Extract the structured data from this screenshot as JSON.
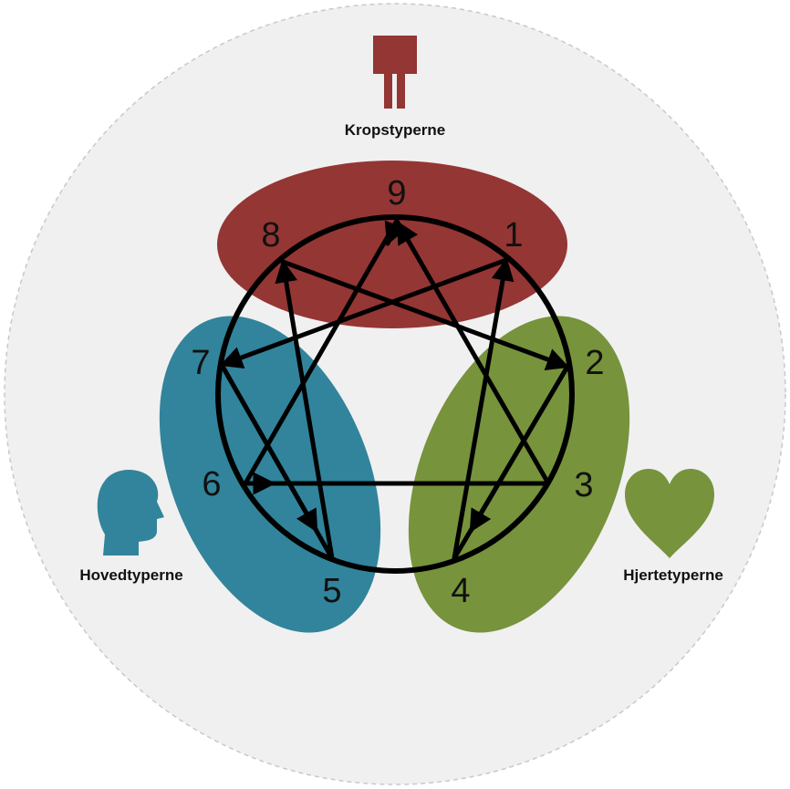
{
  "groups": {
    "body": {
      "label": "Kropstyperne",
      "color": "#943634",
      "icon": "body-silhouette-icon"
    },
    "head": {
      "label": "Hovedtyperne",
      "color": "#31849B",
      "icon": "head-profile-icon"
    },
    "heart": {
      "label": "Hjertetyperne",
      "color": "#77933C",
      "icon": "heart-icon"
    }
  },
  "numbers": [
    "9",
    "1",
    "2",
    "3",
    "4",
    "5",
    "6",
    "7",
    "8"
  ],
  "colors": {
    "background": "#F0F0F0",
    "lines": "#000000"
  }
}
